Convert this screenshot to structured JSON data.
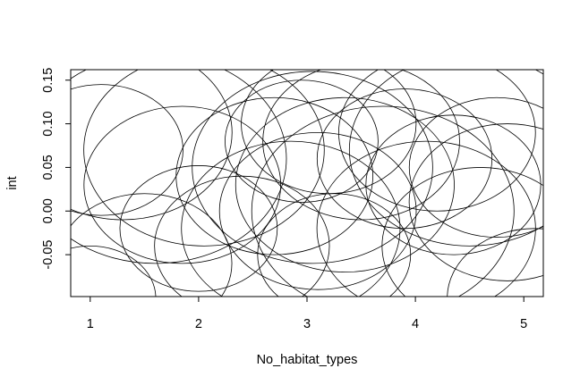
{
  "chart_data": {
    "type": "scatter",
    "title": "",
    "xlabel": "No_habitat_types",
    "ylabel": "int",
    "xlim": [
      0.82,
      5.18
    ],
    "ylim": [
      -0.098,
      0.162
    ],
    "x_ticks": [
      1,
      2,
      3,
      4,
      5
    ],
    "x_tick_labels": [
      "1",
      "2",
      "3",
      "4",
      "5"
    ],
    "y_ticks": [
      -0.05,
      0.0,
      0.05,
      0.1,
      0.15
    ],
    "y_tick_labels": [
      "-0.05",
      "0.00",
      "0.05",
      "0.10",
      "0.15"
    ],
    "grid": false,
    "legend": "none",
    "marker": "circle",
    "points": [
      {
        "x": 1.1,
        "y": 0.07,
        "r": 0.075
      },
      {
        "x": 1.3,
        "y": 0.09,
        "r": 0.1
      },
      {
        "x": 1.6,
        "y": 0.06,
        "r": 0.12
      },
      {
        "x": 1.85,
        "y": 0.03,
        "r": 0.09
      },
      {
        "x": 2.0,
        "y": -0.02,
        "r": 0.072
      },
      {
        "x": 2.05,
        "y": 0.07,
        "r": 0.11
      },
      {
        "x": 1.0,
        "y": -0.1,
        "r": 0.06
      },
      {
        "x": 1.5,
        "y": -0.06,
        "r": 0.08
      },
      {
        "x": 2.4,
        "y": -0.04,
        "r": 0.08
      },
      {
        "x": 2.7,
        "y": 0.04,
        "r": 0.09
      },
      {
        "x": 2.85,
        "y": -0.02,
        "r": 0.1
      },
      {
        "x": 2.95,
        "y": 0.08,
        "r": 0.07
      },
      {
        "x": 3.05,
        "y": 0.05,
        "r": 0.11
      },
      {
        "x": 3.1,
        "y": 0.0,
        "r": 0.09
      },
      {
        "x": 3.2,
        "y": 0.1,
        "r": 0.08
      },
      {
        "x": 3.25,
        "y": -0.05,
        "r": 0.07
      },
      {
        "x": 3.35,
        "y": 0.03,
        "r": 0.1
      },
      {
        "x": 3.5,
        "y": 0.08,
        "r": 0.09
      },
      {
        "x": 3.7,
        "y": 0.0,
        "r": 0.12
      },
      {
        "x": 3.9,
        "y": 0.06,
        "r": 0.08
      },
      {
        "x": 4.1,
        "y": -0.02,
        "r": 0.1
      },
      {
        "x": 4.2,
        "y": 0.09,
        "r": 0.09
      },
      {
        "x": 4.35,
        "y": 0.03,
        "r": 0.08
      },
      {
        "x": 4.5,
        "y": 0.07,
        "r": 0.11
      },
      {
        "x": 4.6,
        "y": -0.04,
        "r": 0.09
      },
      {
        "x": 4.75,
        "y": 0.05,
        "r": 0.08
      },
      {
        "x": 4.85,
        "y": 0.01,
        "r": 0.09
      },
      {
        "x": 5.1,
        "y": -0.1,
        "r": 0.08
      }
    ]
  }
}
